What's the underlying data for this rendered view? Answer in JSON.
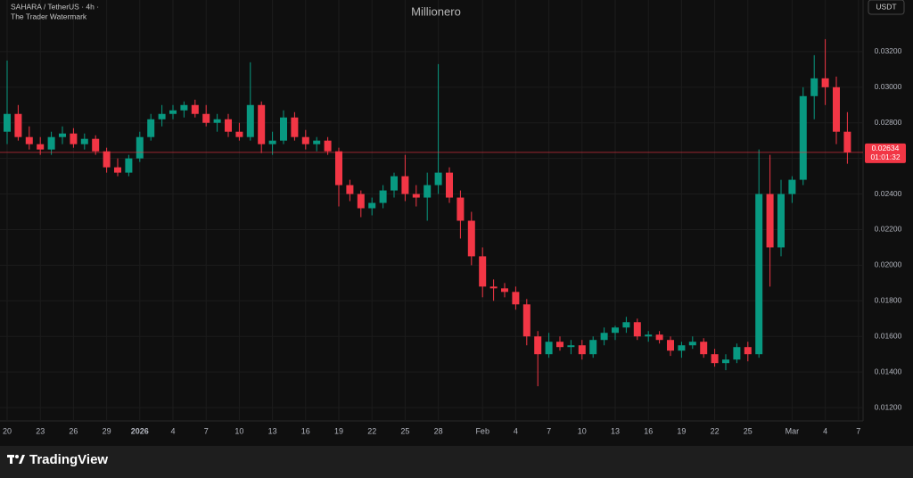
{
  "chart_data": {
    "type": "candlestick",
    "title": "Millionero",
    "symbol": "SAHARA / TetherUS · 4h ·",
    "subtitle": "The Trader Watermark",
    "currency": "USDT",
    "up_color": "#089981",
    "down_color": "#f23645",
    "grid": true,
    "last_price": 0.02634,
    "countdown": "01:01:32",
    "ylim": [
      0.01035,
      0.0349
    ],
    "yticks": [
      {
        "value": 0.012,
        "label": "0.01200"
      },
      {
        "value": 0.014,
        "label": "0.01400"
      },
      {
        "value": 0.016,
        "label": "0.01600"
      },
      {
        "value": 0.018,
        "label": "0.01800"
      },
      {
        "value": 0.02,
        "label": "0.02000"
      },
      {
        "value": 0.022,
        "label": "0.02200"
      },
      {
        "value": 0.024,
        "label": "0.02400"
      },
      {
        "value": 0.026,
        "label": "0.02600"
      },
      {
        "value": 0.028,
        "label": "0.02800"
      },
      {
        "value": 0.03,
        "label": "0.03000"
      },
      {
        "value": 0.032,
        "label": "0.03200"
      }
    ],
    "categories": [
      "20",
      null,
      null,
      "23",
      null,
      null,
      "26",
      null,
      null,
      "29",
      null,
      null,
      "2026",
      null,
      null,
      "4",
      null,
      null,
      "7",
      null,
      null,
      "10",
      null,
      null,
      "13",
      null,
      null,
      "16",
      null,
      null,
      "19",
      null,
      null,
      "22",
      null,
      null,
      "25",
      null,
      null,
      "28",
      null,
      null,
      null,
      "Feb",
      null,
      null,
      "4",
      null,
      null,
      "7",
      null,
      null,
      "10",
      null,
      null,
      "13",
      null,
      null,
      "16",
      null,
      null,
      "19",
      null,
      null,
      "22",
      null,
      null,
      "25",
      null,
      null,
      null,
      "Mar",
      null,
      null,
      "4",
      null,
      null,
      "7"
    ],
    "open": [
      0.0275,
      0.0285,
      0.0272,
      0.0268,
      0.0265,
      0.0272,
      0.0274,
      0.0268,
      0.0271,
      0.0264,
      0.0255,
      0.0252,
      0.026,
      0.0272,
      0.0282,
      0.0285,
      0.0287,
      0.029,
      0.0285,
      0.028,
      0.0282,
      0.0275,
      0.0272,
      0.029,
      0.0268,
      0.027,
      0.0283,
      0.0272,
      0.0268,
      0.027,
      0.0264,
      0.0245,
      0.024,
      0.0232,
      0.0235,
      0.0242,
      0.025,
      0.024,
      0.0238,
      0.0245,
      0.0252,
      0.0238,
      0.0225,
      0.0205,
      0.0188,
      0.0187,
      0.0185,
      0.0178,
      0.016,
      0.015,
      0.0157,
      0.0154,
      0.0155,
      0.015,
      0.0158,
      0.0162,
      0.0165,
      0.0168,
      0.016,
      0.0161,
      0.0158,
      0.0152,
      0.0155,
      0.0157,
      0.015,
      0.0145,
      0.0147,
      0.0154,
      0.015,
      0.024,
      0.021,
      0.024,
      0.0248,
      0.0295,
      0.0305,
      0.03,
      0.0275,
      null
    ],
    "high": [
      0.0315,
      0.029,
      0.0278,
      0.0272,
      0.0275,
      0.0278,
      0.0277,
      0.0274,
      0.0273,
      0.0266,
      0.026,
      0.0262,
      0.0275,
      0.0285,
      0.029,
      0.029,
      0.0292,
      0.0293,
      0.029,
      0.0285,
      0.0285,
      0.028,
      0.0314,
      0.0292,
      0.0275,
      0.0287,
      0.0286,
      0.0276,
      0.0272,
      0.0272,
      0.0266,
      0.0248,
      0.0242,
      0.0238,
      0.0245,
      0.0252,
      0.0262,
      0.0245,
      0.0252,
      0.0313,
      0.0255,
      0.0242,
      0.023,
      0.021,
      0.0192,
      0.019,
      0.0188,
      0.0181,
      0.0163,
      0.0162,
      0.016,
      0.0158,
      0.0158,
      0.016,
      0.0165,
      0.0166,
      0.0171,
      0.017,
      0.0163,
      0.0163,
      0.016,
      0.0157,
      0.016,
      0.0159,
      0.0153,
      0.015,
      0.0156,
      0.0157,
      0.0265,
      0.0262,
      0.0248,
      0.025,
      0.03,
      0.0318,
      0.0327,
      0.0306,
      0.0286,
      null
    ],
    "low": [
      0.0268,
      0.027,
      0.0265,
      0.0262,
      0.0262,
      0.0268,
      0.0266,
      0.0265,
      0.0262,
      0.0252,
      0.025,
      0.025,
      0.0258,
      0.027,
      0.0278,
      0.0282,
      0.0283,
      0.0283,
      0.0278,
      0.0275,
      0.0272,
      0.027,
      0.027,
      0.0263,
      0.0262,
      0.0268,
      0.027,
      0.0265,
      0.0264,
      0.0262,
      0.0233,
      0.0236,
      0.0227,
      0.0228,
      0.0232,
      0.0238,
      0.0236,
      0.0233,
      0.0225,
      0.024,
      0.0235,
      0.0215,
      0.02,
      0.0182,
      0.018,
      0.0182,
      0.0175,
      0.0155,
      0.0132,
      0.0148,
      0.0152,
      0.015,
      0.0147,
      0.0148,
      0.0155,
      0.0158,
      0.0162,
      0.0158,
      0.0157,
      0.0156,
      0.0149,
      0.0148,
      0.0153,
      0.0148,
      0.0143,
      0.0141,
      0.0145,
      0.0146,
      0.0148,
      0.0188,
      0.0205,
      0.0235,
      0.0245,
      0.0282,
      0.029,
      0.0268,
      0.0257,
      null
    ],
    "close": [
      0.0285,
      0.0272,
      0.0268,
      0.0265,
      0.0272,
      0.0274,
      0.0268,
      0.0271,
      0.0264,
      0.0255,
      0.0252,
      0.026,
      0.0272,
      0.0282,
      0.0285,
      0.0287,
      0.029,
      0.0285,
      0.028,
      0.0282,
      0.0275,
      0.0272,
      0.029,
      0.0268,
      0.027,
      0.0283,
      0.0272,
      0.0268,
      0.027,
      0.0264,
      0.0245,
      0.024,
      0.0232,
      0.0235,
      0.0242,
      0.025,
      0.024,
      0.0238,
      0.0245,
      0.0252,
      0.0238,
      0.0225,
      0.0205,
      0.0188,
      0.0187,
      0.0185,
      0.0178,
      0.016,
      0.015,
      0.0157,
      0.0154,
      0.0155,
      0.015,
      0.0158,
      0.0162,
      0.0165,
      0.0168,
      0.016,
      0.0161,
      0.0158,
      0.0152,
      0.0155,
      0.0157,
      0.015,
      0.0145,
      0.0147,
      0.0154,
      0.015,
      0.024,
      0.021,
      0.024,
      0.0248,
      0.0295,
      0.0305,
      0.03,
      0.0275,
      0.02634,
      null
    ]
  },
  "footer": {
    "brand": "TradingView"
  }
}
